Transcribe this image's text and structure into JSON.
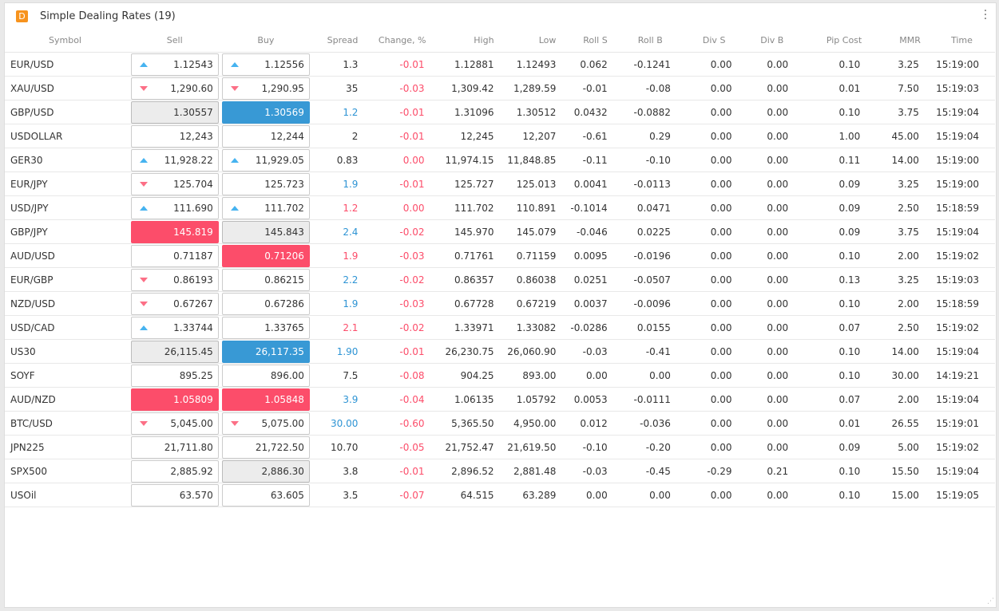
{
  "header": {
    "logo": "D",
    "title": "Simple Dealing Rates (19)"
  },
  "columns": [
    "Symbol",
    "Sell",
    "Buy",
    "Spread",
    "Change, %",
    "High",
    "Low",
    "Roll S",
    "Roll B",
    "Div S",
    "Div B",
    "Pip Cost",
    "MMR",
    "Time"
  ],
  "colors": {
    "up": "#46b3f0",
    "down": "#fc6f86",
    "blue": "#3899d5",
    "red": "#fc4d6a"
  },
  "rows": [
    {
      "symbol": "EUR/USD",
      "sell": "1.12543",
      "sell_arrow": "up",
      "sell_hl": "",
      "buy": "1.12556",
      "buy_arrow": "up",
      "buy_hl": "",
      "spread": "1.3",
      "spread_color": "",
      "change": "-0.01",
      "high": "1.12881",
      "low": "1.12493",
      "roll_s": "0.062",
      "roll_b": "-0.1241",
      "div_s": "0.00",
      "div_b": "0.00",
      "pip_cost": "0.10",
      "mmr": "3.25",
      "time": "15:19:00"
    },
    {
      "symbol": "XAU/USD",
      "sell": "1,290.60",
      "sell_arrow": "down",
      "sell_hl": "",
      "buy": "1,290.95",
      "buy_arrow": "down",
      "buy_hl": "",
      "spread": "35",
      "spread_color": "",
      "change": "-0.03",
      "high": "1,309.42",
      "low": "1,289.59",
      "roll_s": "-0.01",
      "roll_b": "-0.08",
      "div_s": "0.00",
      "div_b": "0.00",
      "pip_cost": "0.01",
      "mmr": "7.50",
      "time": "15:19:03"
    },
    {
      "symbol": "GBP/USD",
      "sell": "1.30557",
      "sell_arrow": "",
      "sell_hl": "gray",
      "buy": "1.30569",
      "buy_arrow": "",
      "buy_hl": "blue",
      "spread": "1.2",
      "spread_color": "blue",
      "change": "-0.01",
      "high": "1.31096",
      "low": "1.30512",
      "roll_s": "0.0432",
      "roll_b": "-0.0882",
      "div_s": "0.00",
      "div_b": "0.00",
      "pip_cost": "0.10",
      "mmr": "3.75",
      "time": "15:19:04"
    },
    {
      "symbol": "USDOLLAR",
      "sell": "12,243",
      "sell_arrow": "",
      "sell_hl": "",
      "buy": "12,244",
      "buy_arrow": "",
      "buy_hl": "",
      "spread": "2",
      "spread_color": "",
      "change": "-0.01",
      "high": "12,245",
      "low": "12,207",
      "roll_s": "-0.61",
      "roll_b": "0.29",
      "div_s": "0.00",
      "div_b": "0.00",
      "pip_cost": "1.00",
      "mmr": "45.00",
      "time": "15:19:04"
    },
    {
      "symbol": "GER30",
      "sell": "11,928.22",
      "sell_arrow": "up",
      "sell_hl": "",
      "buy": "11,929.05",
      "buy_arrow": "up",
      "buy_hl": "",
      "spread": "0.83",
      "spread_color": "",
      "change": "0.00",
      "high": "11,974.15",
      "low": "11,848.85",
      "roll_s": "-0.11",
      "roll_b": "-0.10",
      "div_s": "0.00",
      "div_b": "0.00",
      "pip_cost": "0.11",
      "mmr": "14.00",
      "time": "15:19:00"
    },
    {
      "symbol": "EUR/JPY",
      "sell": "125.704",
      "sell_arrow": "down",
      "sell_hl": "",
      "buy": "125.723",
      "buy_arrow": "",
      "buy_hl": "",
      "spread": "1.9",
      "spread_color": "blue",
      "change": "-0.01",
      "high": "125.727",
      "low": "125.013",
      "roll_s": "0.0041",
      "roll_b": "-0.0113",
      "div_s": "0.00",
      "div_b": "0.00",
      "pip_cost": "0.09",
      "mmr": "3.25",
      "time": "15:19:00"
    },
    {
      "symbol": "USD/JPY",
      "sell": "111.690",
      "sell_arrow": "up",
      "sell_hl": "",
      "buy": "111.702",
      "buy_arrow": "up",
      "buy_hl": "",
      "spread": "1.2",
      "spread_color": "red",
      "change": "0.00",
      "high": "111.702",
      "low": "110.891",
      "roll_s": "-0.1014",
      "roll_b": "0.0471",
      "div_s": "0.00",
      "div_b": "0.00",
      "pip_cost": "0.09",
      "mmr": "2.50",
      "time": "15:18:59"
    },
    {
      "symbol": "GBP/JPY",
      "sell": "145.819",
      "sell_arrow": "",
      "sell_hl": "red",
      "buy": "145.843",
      "buy_arrow": "",
      "buy_hl": "gray",
      "spread": "2.4",
      "spread_color": "blue",
      "change": "-0.02",
      "high": "145.970",
      "low": "145.079",
      "roll_s": "-0.046",
      "roll_b": "0.0225",
      "div_s": "0.00",
      "div_b": "0.00",
      "pip_cost": "0.09",
      "mmr": "3.75",
      "time": "15:19:04"
    },
    {
      "symbol": "AUD/USD",
      "sell": "0.71187",
      "sell_arrow": "",
      "sell_hl": "",
      "buy": "0.71206",
      "buy_arrow": "",
      "buy_hl": "red",
      "spread": "1.9",
      "spread_color": "red",
      "change": "-0.03",
      "high": "0.71761",
      "low": "0.71159",
      "roll_s": "0.0095",
      "roll_b": "-0.0196",
      "div_s": "0.00",
      "div_b": "0.00",
      "pip_cost": "0.10",
      "mmr": "2.00",
      "time": "15:19:02"
    },
    {
      "symbol": "EUR/GBP",
      "sell": "0.86193",
      "sell_arrow": "down",
      "sell_hl": "",
      "buy": "0.86215",
      "buy_arrow": "",
      "buy_hl": "",
      "spread": "2.2",
      "spread_color": "blue",
      "change": "-0.02",
      "high": "0.86357",
      "low": "0.86038",
      "roll_s": "0.0251",
      "roll_b": "-0.0507",
      "div_s": "0.00",
      "div_b": "0.00",
      "pip_cost": "0.13",
      "mmr": "3.25",
      "time": "15:19:03"
    },
    {
      "symbol": "NZD/USD",
      "sell": "0.67267",
      "sell_arrow": "down",
      "sell_hl": "",
      "buy": "0.67286",
      "buy_arrow": "",
      "buy_hl": "",
      "spread": "1.9",
      "spread_color": "blue",
      "change": "-0.03",
      "high": "0.67728",
      "low": "0.67219",
      "roll_s": "0.0037",
      "roll_b": "-0.0096",
      "div_s": "0.00",
      "div_b": "0.00",
      "pip_cost": "0.10",
      "mmr": "2.00",
      "time": "15:18:59"
    },
    {
      "symbol": "USD/CAD",
      "sell": "1.33744",
      "sell_arrow": "up",
      "sell_hl": "",
      "buy": "1.33765",
      "buy_arrow": "",
      "buy_hl": "",
      "spread": "2.1",
      "spread_color": "red",
      "change": "-0.02",
      "high": "1.33971",
      "low": "1.33082",
      "roll_s": "-0.0286",
      "roll_b": "0.0155",
      "div_s": "0.00",
      "div_b": "0.00",
      "pip_cost": "0.07",
      "mmr": "2.50",
      "time": "15:19:02"
    },
    {
      "symbol": "US30",
      "sell": "26,115.45",
      "sell_arrow": "",
      "sell_hl": "gray",
      "buy": "26,117.35",
      "buy_arrow": "",
      "buy_hl": "blue",
      "spread": "1.90",
      "spread_color": "blue",
      "change": "-0.01",
      "high": "26,230.75",
      "low": "26,060.90",
      "roll_s": "-0.03",
      "roll_b": "-0.41",
      "div_s": "0.00",
      "div_b": "0.00",
      "pip_cost": "0.10",
      "mmr": "14.00",
      "time": "15:19:04"
    },
    {
      "symbol": "SOYF",
      "sell": "895.25",
      "sell_arrow": "",
      "sell_hl": "",
      "buy": "896.00",
      "buy_arrow": "",
      "buy_hl": "",
      "spread": "7.5",
      "spread_color": "",
      "change": "-0.08",
      "high": "904.25",
      "low": "893.00",
      "roll_s": "0.00",
      "roll_b": "0.00",
      "div_s": "0.00",
      "div_b": "0.00",
      "pip_cost": "0.10",
      "mmr": "30.00",
      "time": "14:19:21"
    },
    {
      "symbol": "AUD/NZD",
      "sell": "1.05809",
      "sell_arrow": "",
      "sell_hl": "red",
      "buy": "1.05848",
      "buy_arrow": "",
      "buy_hl": "red",
      "spread": "3.9",
      "spread_color": "blue",
      "change": "-0.04",
      "high": "1.06135",
      "low": "1.05792",
      "roll_s": "0.0053",
      "roll_b": "-0.0111",
      "div_s": "0.00",
      "div_b": "0.00",
      "pip_cost": "0.07",
      "mmr": "2.00",
      "time": "15:19:04"
    },
    {
      "symbol": "BTC/USD",
      "sell": "5,045.00",
      "sell_arrow": "down",
      "sell_hl": "",
      "buy": "5,075.00",
      "buy_arrow": "down",
      "buy_hl": "",
      "spread": "30.00",
      "spread_color": "blue",
      "change": "-0.60",
      "high": "5,365.50",
      "low": "4,950.00",
      "roll_s": "0.012",
      "roll_b": "-0.036",
      "div_s": "0.00",
      "div_b": "0.00",
      "pip_cost": "0.01",
      "mmr": "26.55",
      "time": "15:19:01"
    },
    {
      "symbol": "JPN225",
      "sell": "21,711.80",
      "sell_arrow": "",
      "sell_hl": "",
      "buy": "21,722.50",
      "buy_arrow": "",
      "buy_hl": "",
      "spread": "10.70",
      "spread_color": "",
      "change": "-0.05",
      "high": "21,752.47",
      "low": "21,619.50",
      "roll_s": "-0.10",
      "roll_b": "-0.20",
      "div_s": "0.00",
      "div_b": "0.00",
      "pip_cost": "0.09",
      "mmr": "5.00",
      "time": "15:19:02"
    },
    {
      "symbol": "SPX500",
      "sell": "2,885.92",
      "sell_arrow": "",
      "sell_hl": "",
      "buy": "2,886.30",
      "buy_arrow": "",
      "buy_hl": "gray",
      "spread": "3.8",
      "spread_color": "",
      "change": "-0.01",
      "high": "2,896.52",
      "low": "2,881.48",
      "roll_s": "-0.03",
      "roll_b": "-0.45",
      "div_s": "-0.29",
      "div_b": "0.21",
      "pip_cost": "0.10",
      "mmr": "15.50",
      "time": "15:19:04"
    },
    {
      "symbol": "USOil",
      "sell": "63.570",
      "sell_arrow": "",
      "sell_hl": "",
      "buy": "63.605",
      "buy_arrow": "",
      "buy_hl": "",
      "spread": "3.5",
      "spread_color": "",
      "change": "-0.07",
      "high": "64.515",
      "low": "63.289",
      "roll_s": "0.00",
      "roll_b": "0.00",
      "div_s": "0.00",
      "div_b": "0.00",
      "pip_cost": "0.10",
      "mmr": "15.00",
      "time": "15:19:05"
    }
  ]
}
